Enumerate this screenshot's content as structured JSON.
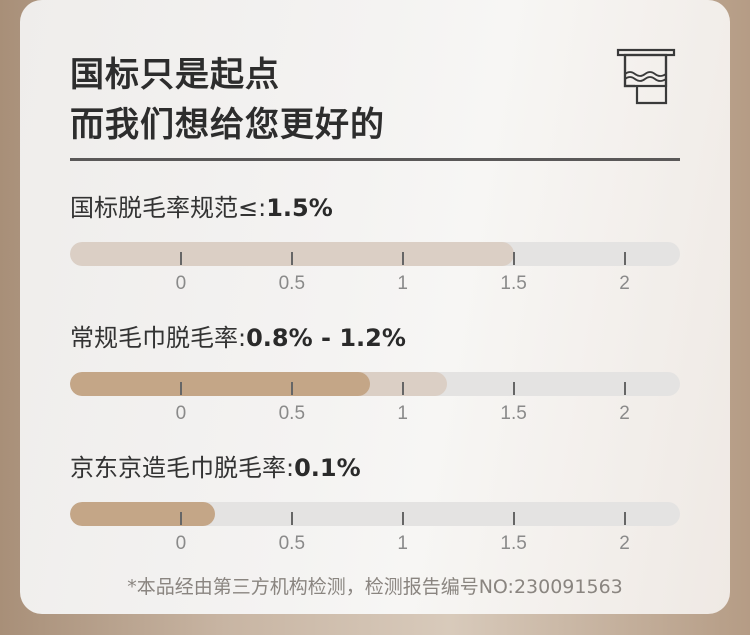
{
  "header": {
    "title_line1": "国标只是起点",
    "title_line2": "而我们想给您更好的",
    "icon": "towel-icon"
  },
  "colors": {
    "fill_primary": "#c4a687",
    "fill_secondary": "#dbcfc5",
    "track": "#e4e3e2"
  },
  "chart_data": [
    {
      "type": "bar",
      "label": "国标脱毛率规范≤:",
      "value_text": "1.5%",
      "range": [
        null,
        1.5
      ],
      "x_ticks": [
        "0",
        "0.5",
        "1",
        "1.5",
        "2"
      ],
      "xlim": [
        -0.5,
        2.25
      ],
      "fill": "secondary"
    },
    {
      "type": "bar",
      "label": "常规毛巾脱毛率:",
      "value_text": "0.8% - 1.2%",
      "range": [
        0.8,
        1.2
      ],
      "x_ticks": [
        "0",
        "0.5",
        "1",
        "1.5",
        "2"
      ],
      "xlim": [
        -0.5,
        2.25
      ],
      "fill": "both"
    },
    {
      "type": "bar",
      "label": "京东京造毛巾脱毛率:",
      "value_text": "0.1%",
      "range": [
        null,
        0.1
      ],
      "x_ticks": [
        "0",
        "0.5",
        "1",
        "1.5",
        "2"
      ],
      "xlim": [
        -0.5,
        2.25
      ],
      "fill": "primary"
    }
  ],
  "footnote": "*本品经由第三方机构检测，检测报告编号NO:230091563"
}
